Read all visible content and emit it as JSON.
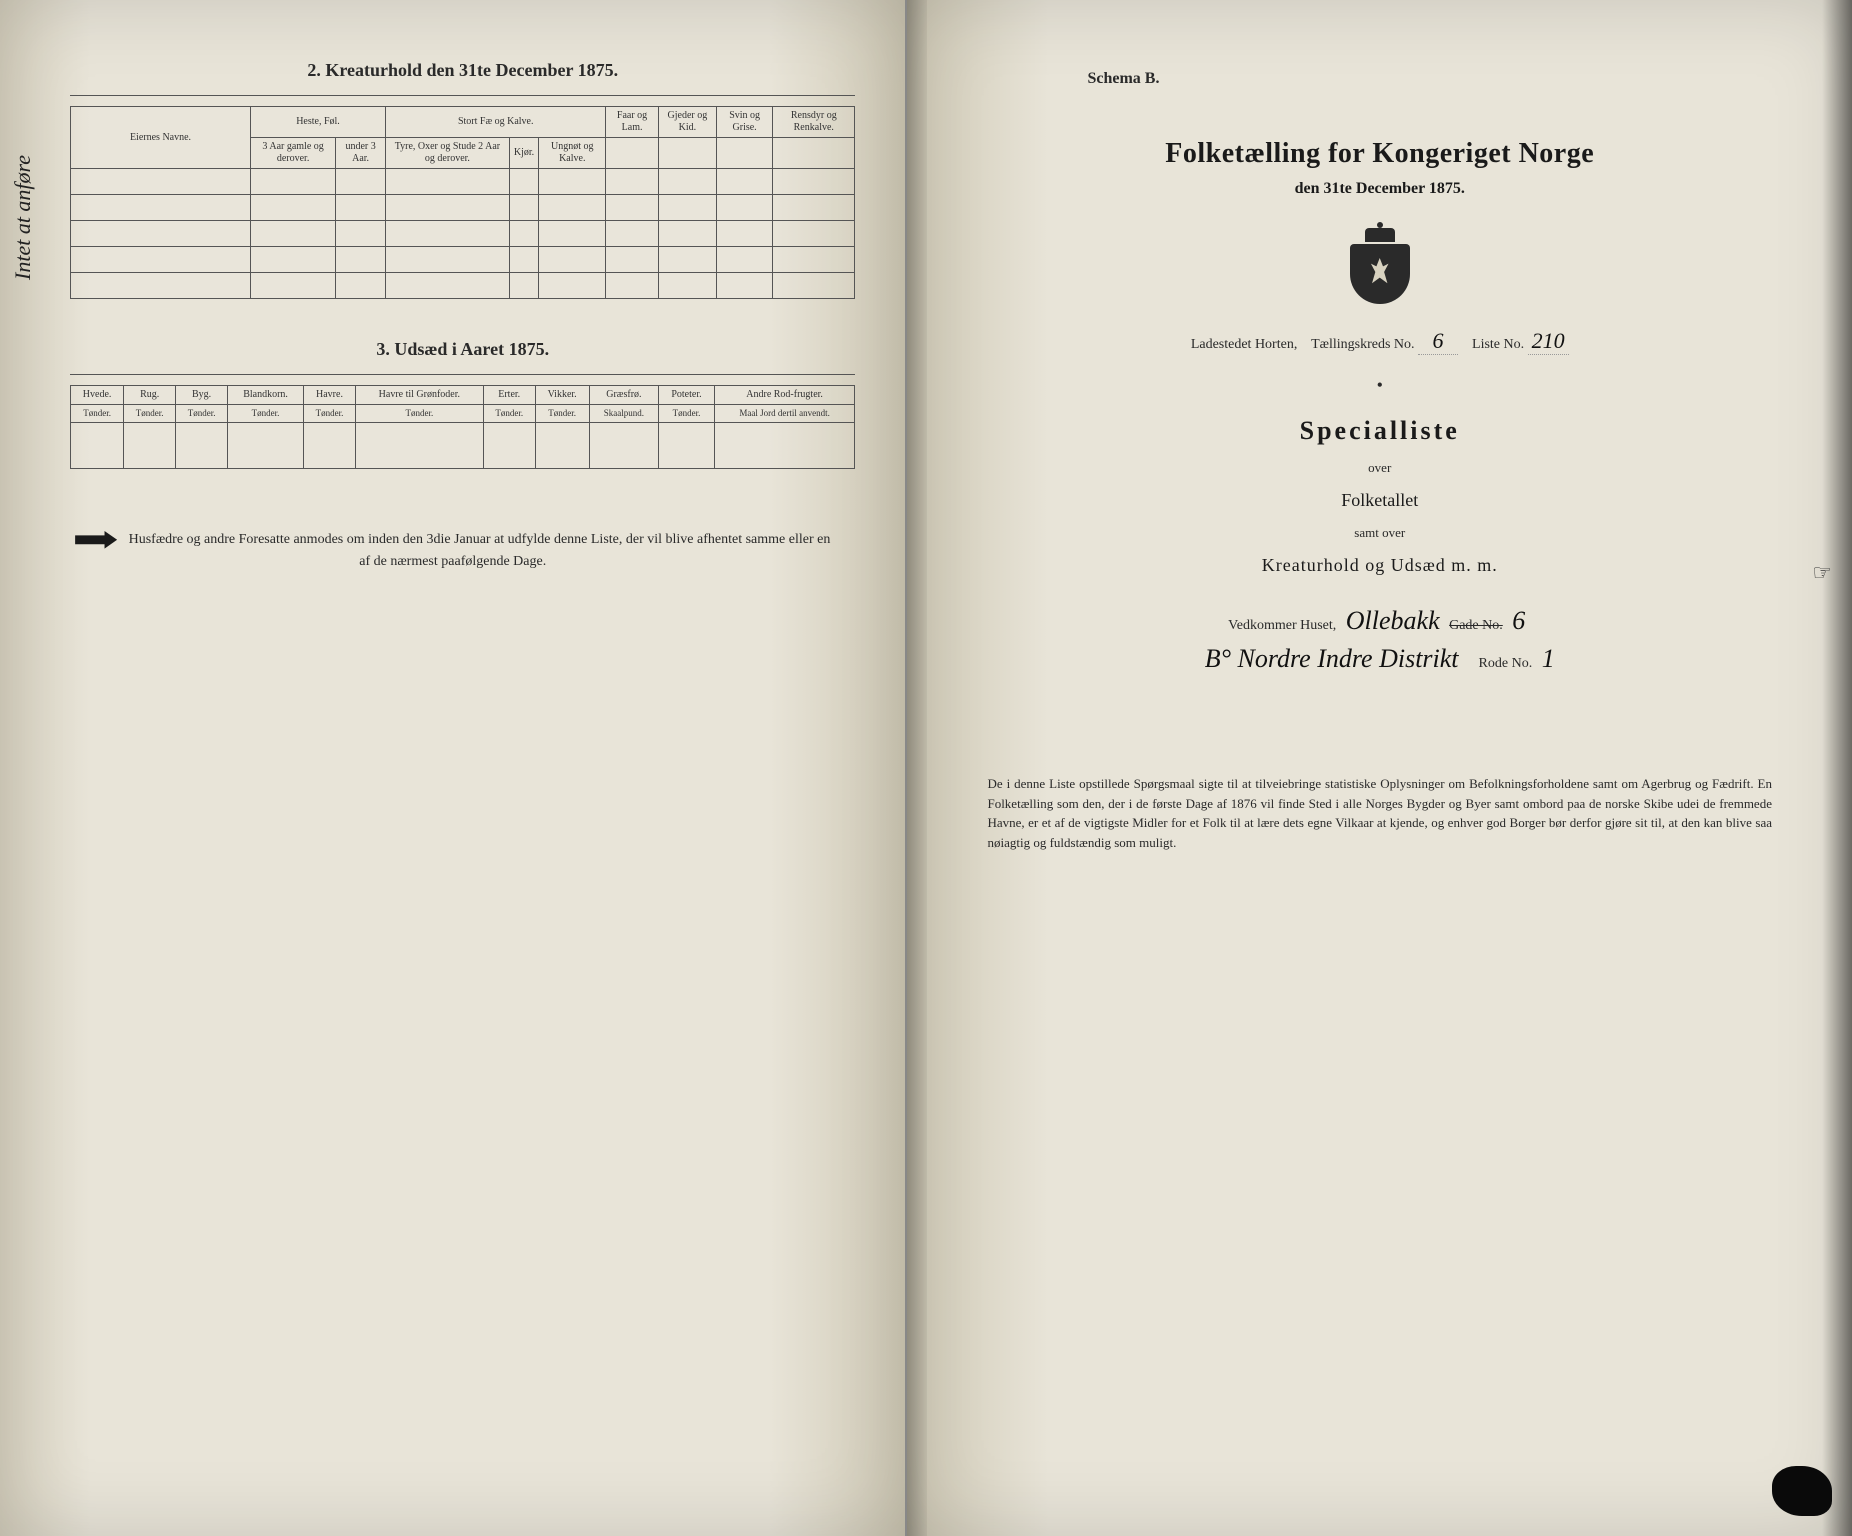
{
  "colors": {
    "paper": "#e8e4d8",
    "paper_shadow": "#d0cab8",
    "ink": "#2a2a2a",
    "dark_ink": "#1a1a1a",
    "border": "#555555",
    "background": "#1a1a1a"
  },
  "typography": {
    "title_fontsize": 28,
    "section_fontsize": 18,
    "body_fontsize": 14,
    "table_fontsize": 11,
    "script_fontsize": 26
  },
  "left_page": {
    "margin_handwriting": "Intet at anføre",
    "section2": {
      "title": "2.  Kreaturhold den 31te December 1875.",
      "owner_header": "Eiernes Navne.",
      "groups": [
        {
          "label": "Heste, Føl.",
          "cols": [
            "3 Aar gamle og derover.",
            "under 3 Aar."
          ]
        },
        {
          "label": "Stort Fæ og Kalve.",
          "cols": [
            "Tyre, Oxer og Stude 2 Aar og derover.",
            "Kjør.",
            "Ungnøt og Kalve."
          ]
        },
        {
          "label": "Faar og Lam.",
          "cols": [
            ""
          ]
        },
        {
          "label": "Gjeder og Kid.",
          "cols": [
            ""
          ]
        },
        {
          "label": "Svin og Grise.",
          "cols": [
            ""
          ]
        },
        {
          "label": "Rensdyr og Renkalve.",
          "cols": [
            ""
          ]
        }
      ],
      "blank_rows": 5
    },
    "section3": {
      "title": "3.  Udsæd i Aaret 1875.",
      "columns": [
        {
          "name": "Hvede.",
          "unit": "Tønder."
        },
        {
          "name": "Rug.",
          "unit": "Tønder."
        },
        {
          "name": "Byg.",
          "unit": "Tønder."
        },
        {
          "name": "Blandkorn.",
          "unit": "Tønder."
        },
        {
          "name": "Havre.",
          "unit": "Tønder."
        },
        {
          "name": "Havre til Grønfoder.",
          "unit": "Tønder."
        },
        {
          "name": "Erter.",
          "unit": "Tønder."
        },
        {
          "name": "Vikker.",
          "unit": "Tønder."
        },
        {
          "name": "Græsfrø.",
          "unit": "Skaalpund."
        },
        {
          "name": "Poteter.",
          "unit": "Tønder."
        },
        {
          "name": "Andre Rod-frugter.",
          "unit": "Maal Jord dertil anvendt."
        }
      ],
      "blank_rows": 1
    },
    "footer_note": "Husfædre og andre Foresatte anmodes om inden den 3die Januar at udfylde denne Liste, der vil blive afhentet samme eller en af de nærmest paafølgende Dage."
  },
  "right_page": {
    "schema": "Schema B.",
    "title": "Folketælling for Kongeriget Norge",
    "date_line": "den 31te December 1875.",
    "meta": {
      "place_label": "Ladestedet Horten,",
      "district_label": "Tællingskreds No.",
      "district_value": "6",
      "list_label": "Liste No.",
      "list_value": "210"
    },
    "special_title": "Specialliste",
    "over": "over",
    "folketallet": "Folketallet",
    "samt_over": "samt over",
    "kreaturhold_line": "Kreaturhold og Udsæd m. m.",
    "house_line": {
      "prefix": "Vedkommer Huset,",
      "street_script": "Ollebakk",
      "gade_label": "Gade No.",
      "gade_value": "6"
    },
    "second_line": {
      "script": "B° Nordre Indre Distrikt",
      "rode_label": "Rode No.",
      "rode_value": "1"
    },
    "bottom_paragraph": "De i denne Liste opstillede Spørgsmaal sigte til at tilveiebringe statistiske Oplysninger om Befolkningsforholdene samt om Agerbrug og Fædrift.  En Folketælling som den, der i de første Dage af 1876 vil finde Sted i alle Norges Bygder og Byer samt ombord paa de norske Skibe udei de fremmede Havne, er et af de vigtigste Midler for et Folk til at lære dets egne Vilkaar at kjende, og enhver god Borger bør derfor gjøre sit til, at den kan blive saa nøiagtig og fuldstændig som muligt.",
    "side_mark": "☞"
  }
}
